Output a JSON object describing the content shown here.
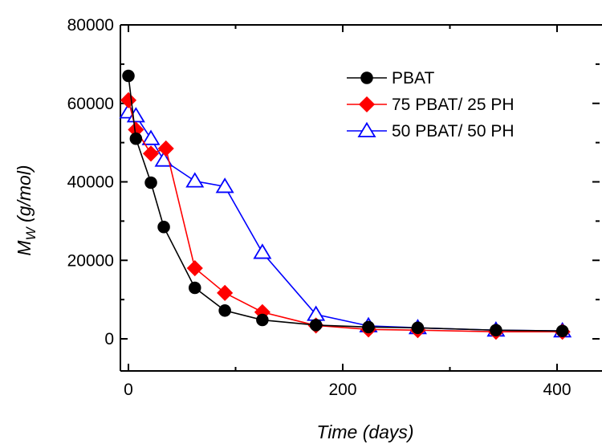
{
  "chart_data": {
    "type": "line",
    "title": "",
    "xlabel": "Time (days)",
    "ylabel_main": "M",
    "ylabel_sub": "W",
    "ylabel_unit": " (g/mol)",
    "xlim": [
      -5,
      440
    ],
    "ylim": [
      -8000,
      80000
    ],
    "xticks": [
      0,
      200,
      400
    ],
    "yticks": [
      0,
      20000,
      40000,
      60000,
      80000
    ],
    "legend_position": "top-right",
    "grid": false,
    "series": [
      {
        "name": "PBAT",
        "color": "#000000",
        "marker": "circle",
        "filled": true,
        "x": [
          0,
          7,
          21,
          33,
          62,
          90,
          125,
          175,
          224,
          270,
          343,
          405
        ],
        "y": [
          67000,
          51000,
          39800,
          28500,
          13000,
          7200,
          4800,
          3500,
          3000,
          2800,
          2200,
          2000
        ]
      },
      {
        "name": "75 PBAT/ 25 PH",
        "color": "#ff0000",
        "marker": "diamond",
        "filled": true,
        "x": [
          0,
          7,
          21,
          35,
          62,
          90,
          125,
          175,
          224,
          270,
          343,
          405
        ],
        "y": [
          60800,
          53300,
          47200,
          48500,
          18000,
          11700,
          6800,
          3400,
          2400,
          2200,
          1800,
          1800
        ]
      },
      {
        "name": "50 PBAT/ 50 PH",
        "color": "#0000ff",
        "marker": "triangle",
        "filled": false,
        "x": [
          0,
          7,
          21,
          33,
          62,
          90,
          125,
          175,
          224,
          270,
          343,
          405
        ],
        "y": [
          57800,
          56800,
          51000,
          45500,
          40200,
          38800,
          22000,
          6200,
          3300,
          2800,
          2200,
          2000
        ]
      }
    ]
  }
}
